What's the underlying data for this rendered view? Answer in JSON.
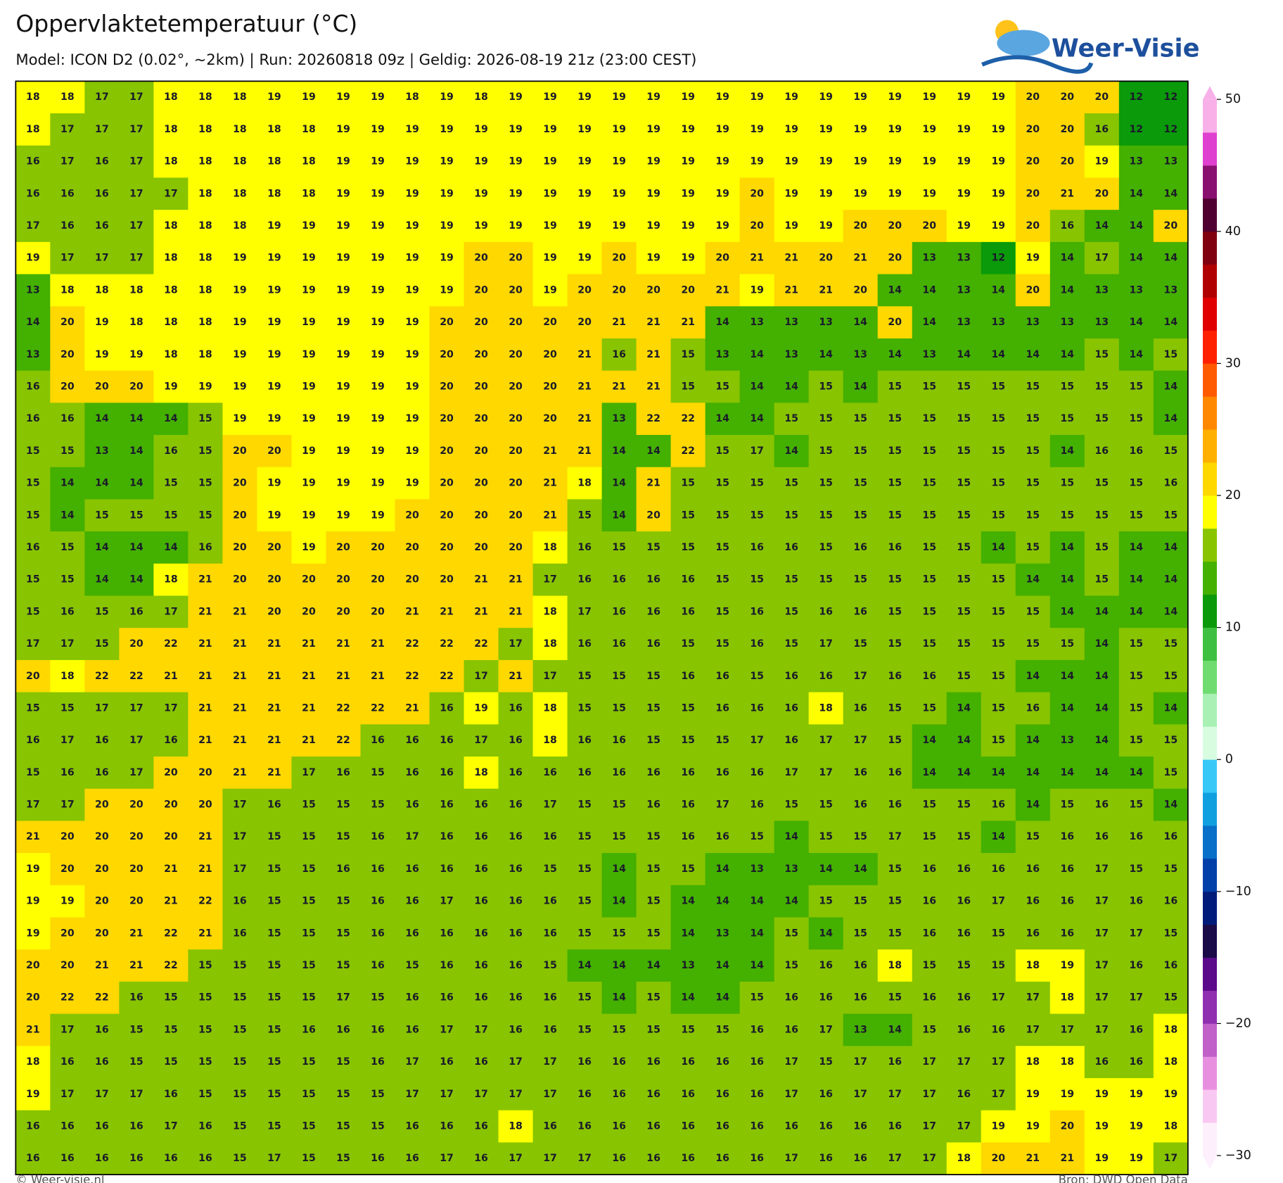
{
  "header": {
    "title": "Oppervlaktetemperatuur (°C)",
    "subtitle": "Model: ICON D2 (0.02°, ~2km)  |  Run: 20260818 09z  |  Geldig: 2026-08-19 21z (23:00 CEST)"
  },
  "logo": {
    "text": "Weer-Visie"
  },
  "footer": {
    "left": "© Weer-visie.nl",
    "right": "Bron: DWD Open Data"
  },
  "colorbar": {
    "lim": [
      -30,
      50
    ],
    "ticks": [
      50,
      40,
      30,
      20,
      10,
      0,
      {
        "value": -10,
        "label": "−10"
      },
      {
        "value": -20,
        "label": "−20"
      },
      {
        "value": -30,
        "label": "−30"
      }
    ],
    "colors": [
      "#fdf0fc",
      "#f9c8f2",
      "#e890e0",
      "#c060c8",
      "#9030b0",
      "#5a0a8a",
      "#1a0a48",
      "#001a7a",
      "#0040a8",
      "#0870c8",
      "#10a0e0",
      "#38c8f8",
      "#d8fce0",
      "#a8f0b4",
      "#70dc70",
      "#40c040",
      "#0a9a0a",
      "#44b000",
      "#88c400",
      "#ffff00",
      "#ffd800",
      "#ffb000",
      "#ff8800",
      "#ff5a00",
      "#ff2000",
      "#e00000",
      "#b00000",
      "#800010",
      "#500030",
      "#8a1070",
      "#e040d0",
      "#f8b0e8"
    ]
  },
  "map": {
    "values": [
      [
        18,
        18,
        17,
        17,
        18,
        18,
        18,
        19,
        19,
        19,
        19,
        18,
        19,
        18,
        19,
        19,
        19,
        19,
        19,
        19,
        19,
        19,
        19,
        19,
        19,
        19,
        19,
        19,
        19,
        20,
        20,
        20,
        12,
        12
      ],
      [
        18,
        17,
        17,
        17,
        18,
        18,
        18,
        18,
        18,
        19,
        19,
        19,
        19,
        19,
        19,
        19,
        19,
        19,
        19,
        19,
        19,
        19,
        19,
        19,
        19,
        19,
        19,
        19,
        19,
        20,
        20,
        16,
        12,
        12
      ],
      [
        16,
        17,
        16,
        17,
        18,
        18,
        18,
        18,
        18,
        19,
        19,
        19,
        19,
        19,
        19,
        19,
        19,
        19,
        19,
        19,
        19,
        19,
        19,
        19,
        19,
        19,
        19,
        19,
        19,
        20,
        20,
        19,
        13,
        13
      ],
      [
        16,
        16,
        16,
        17,
        17,
        18,
        18,
        18,
        18,
        19,
        19,
        19,
        19,
        19,
        19,
        19,
        19,
        19,
        19,
        19,
        19,
        20,
        19,
        19,
        19,
        19,
        19,
        19,
        19,
        20,
        21,
        20,
        14,
        14
      ],
      [
        17,
        16,
        16,
        17,
        18,
        18,
        18,
        19,
        19,
        19,
        19,
        19,
        19,
        19,
        19,
        19,
        19,
        19,
        19,
        19,
        19,
        20,
        19,
        19,
        20,
        20,
        20,
        19,
        19,
        20,
        16,
        14,
        14,
        20
      ],
      [
        19,
        17,
        17,
        17,
        18,
        18,
        19,
        19,
        19,
        19,
        19,
        19,
        19,
        20,
        20,
        19,
        19,
        20,
        19,
        19,
        20,
        21,
        21,
        20,
        21,
        20,
        13,
        13,
        12,
        19,
        14,
        17,
        14,
        14
      ],
      [
        13,
        18,
        18,
        18,
        18,
        18,
        19,
        19,
        19,
        19,
        19,
        19,
        19,
        20,
        20,
        19,
        20,
        20,
        20,
        20,
        21,
        19,
        21,
        21,
        20,
        14,
        14,
        13,
        14,
        20,
        14,
        13,
        13,
        13
      ],
      [
        14,
        20,
        19,
        18,
        18,
        18,
        19,
        19,
        19,
        19,
        19,
        19,
        20,
        20,
        20,
        20,
        20,
        21,
        21,
        21,
        14,
        13,
        13,
        13,
        14,
        20,
        14,
        13,
        13,
        13,
        13,
        13,
        14,
        14
      ],
      [
        13,
        20,
        19,
        19,
        18,
        18,
        19,
        19,
        19,
        19,
        19,
        19,
        20,
        20,
        20,
        20,
        21,
        16,
        21,
        15,
        13,
        14,
        13,
        14,
        13,
        14,
        13,
        14,
        14,
        14,
        14,
        15,
        14,
        15
      ],
      [
        16,
        20,
        20,
        20,
        19,
        19,
        19,
        19,
        19,
        19,
        19,
        19,
        20,
        20,
        20,
        20,
        21,
        21,
        21,
        15,
        15,
        14,
        14,
        15,
        14,
        15,
        15,
        15,
        15,
        15,
        15,
        15,
        15,
        14
      ],
      [
        16,
        16,
        14,
        14,
        14,
        15,
        19,
        19,
        19,
        19,
        19,
        19,
        20,
        20,
        20,
        20,
        21,
        13,
        22,
        22,
        14,
        14,
        15,
        15,
        15,
        15,
        15,
        15,
        15,
        15,
        15,
        15,
        15,
        14
      ],
      [
        15,
        15,
        13,
        14,
        16,
        15,
        20,
        20,
        19,
        19,
        19,
        19,
        20,
        20,
        20,
        21,
        21,
        14,
        14,
        22,
        15,
        17,
        14,
        15,
        15,
        15,
        15,
        15,
        15,
        15,
        14,
        16,
        16,
        15
      ],
      [
        15,
        14,
        14,
        14,
        15,
        15,
        20,
        19,
        19,
        19,
        19,
        19,
        20,
        20,
        20,
        21,
        18,
        14,
        21,
        15,
        15,
        15,
        15,
        15,
        15,
        15,
        15,
        15,
        15,
        15,
        15,
        15,
        15,
        16
      ],
      [
        15,
        14,
        15,
        15,
        15,
        15,
        20,
        19,
        19,
        19,
        19,
        20,
        20,
        20,
        20,
        21,
        15,
        14,
        20,
        15,
        15,
        15,
        15,
        15,
        15,
        15,
        15,
        15,
        15,
        15,
        15,
        15,
        15,
        15
      ],
      [
        16,
        15,
        14,
        14,
        14,
        16,
        20,
        20,
        19,
        20,
        20,
        20,
        20,
        20,
        20,
        18,
        16,
        15,
        15,
        15,
        15,
        16,
        16,
        15,
        16,
        16,
        15,
        15,
        14,
        15,
        14,
        15,
        14,
        14
      ],
      [
        15,
        15,
        14,
        14,
        18,
        21,
        20,
        20,
        20,
        20,
        20,
        20,
        20,
        21,
        21,
        17,
        16,
        16,
        16,
        16,
        15,
        15,
        15,
        15,
        15,
        15,
        15,
        15,
        15,
        14,
        14,
        15,
        14,
        14
      ],
      [
        15,
        16,
        15,
        16,
        17,
        21,
        21,
        20,
        20,
        20,
        20,
        21,
        21,
        21,
        21,
        18,
        17,
        16,
        16,
        16,
        15,
        16,
        15,
        16,
        16,
        15,
        15,
        15,
        15,
        15,
        14,
        14,
        14,
        14
      ],
      [
        17,
        17,
        15,
        20,
        22,
        21,
        21,
        21,
        21,
        21,
        21,
        22,
        22,
        22,
        17,
        18,
        16,
        16,
        16,
        15,
        15,
        16,
        15,
        17,
        15,
        15,
        15,
        15,
        15,
        15,
        15,
        14,
        15,
        15
      ],
      [
        20,
        18,
        22,
        22,
        21,
        21,
        21,
        21,
        21,
        21,
        21,
        22,
        22,
        17,
        21,
        17,
        15,
        15,
        15,
        16,
        16,
        15,
        16,
        16,
        17,
        16,
        16,
        15,
        15,
        14,
        14,
        14,
        15,
        15
      ],
      [
        15,
        15,
        17,
        17,
        17,
        21,
        21,
        21,
        21,
        22,
        22,
        21,
        16,
        19,
        16,
        18,
        15,
        15,
        15,
        15,
        16,
        16,
        16,
        18,
        16,
        15,
        15,
        14,
        15,
        16,
        14,
        14,
        15,
        14
      ],
      [
        16,
        17,
        16,
        17,
        16,
        21,
        21,
        21,
        21,
        22,
        16,
        16,
        16,
        17,
        16,
        18,
        16,
        16,
        15,
        15,
        15,
        17,
        16,
        17,
        17,
        15,
        14,
        14,
        15,
        14,
        13,
        14,
        15,
        15
      ],
      [
        15,
        16,
        16,
        17,
        20,
        20,
        21,
        21,
        17,
        16,
        15,
        16,
        16,
        18,
        16,
        16,
        16,
        16,
        16,
        16,
        16,
        16,
        17,
        17,
        16,
        16,
        14,
        14,
        14,
        14,
        14,
        14,
        14,
        15
      ],
      [
        17,
        17,
        20,
        20,
        20,
        20,
        17,
        16,
        15,
        15,
        15,
        16,
        16,
        16,
        16,
        17,
        15,
        15,
        16,
        16,
        17,
        16,
        15,
        15,
        16,
        16,
        15,
        15,
        16,
        14,
        15,
        16,
        15,
        14
      ],
      [
        21,
        20,
        20,
        20,
        20,
        21,
        17,
        15,
        15,
        15,
        16,
        17,
        16,
        16,
        16,
        16,
        15,
        15,
        15,
        16,
        16,
        15,
        14,
        15,
        15,
        17,
        15,
        15,
        14,
        15,
        16,
        16,
        16,
        16
      ],
      [
        19,
        20,
        20,
        20,
        21,
        21,
        17,
        15,
        15,
        16,
        16,
        16,
        16,
        16,
        16,
        15,
        15,
        14,
        15,
        15,
        14,
        13,
        13,
        14,
        14,
        15,
        16,
        16,
        16,
        16,
        16,
        17,
        15,
        15
      ],
      [
        19,
        19,
        20,
        20,
        21,
        22,
        16,
        15,
        15,
        15,
        16,
        16,
        17,
        16,
        16,
        16,
        15,
        14,
        15,
        14,
        14,
        14,
        14,
        15,
        15,
        15,
        16,
        16,
        17,
        16,
        16,
        17,
        16,
        16
      ],
      [
        19,
        20,
        20,
        21,
        22,
        21,
        16,
        15,
        15,
        15,
        16,
        16,
        16,
        16,
        16,
        16,
        15,
        15,
        15,
        14,
        13,
        14,
        15,
        14,
        15,
        15,
        16,
        16,
        15,
        16,
        16,
        17,
        17,
        15
      ],
      [
        20,
        20,
        21,
        21,
        22,
        15,
        15,
        15,
        15,
        15,
        16,
        15,
        16,
        16,
        16,
        15,
        14,
        14,
        14,
        13,
        14,
        14,
        15,
        16,
        16,
        18,
        15,
        15,
        15,
        18,
        19,
        17,
        16,
        16
      ],
      [
        20,
        22,
        22,
        16,
        15,
        15,
        15,
        15,
        15,
        17,
        15,
        16,
        16,
        16,
        16,
        16,
        15,
        14,
        15,
        14,
        14,
        15,
        16,
        16,
        16,
        15,
        16,
        16,
        17,
        17,
        18,
        17,
        17,
        15
      ],
      [
        21,
        17,
        16,
        15,
        15,
        15,
        15,
        15,
        16,
        16,
        16,
        16,
        17,
        17,
        16,
        16,
        15,
        15,
        15,
        15,
        15,
        16,
        16,
        17,
        13,
        14,
        15,
        16,
        16,
        17,
        17,
        17,
        16,
        18
      ],
      [
        18,
        16,
        16,
        15,
        15,
        15,
        15,
        15,
        15,
        15,
        16,
        17,
        16,
        16,
        17,
        17,
        16,
        16,
        16,
        16,
        16,
        16,
        17,
        15,
        17,
        16,
        17,
        17,
        17,
        18,
        18,
        16,
        16,
        18
      ],
      [
        19,
        17,
        17,
        17,
        16,
        15,
        15,
        15,
        15,
        15,
        15,
        17,
        17,
        17,
        17,
        17,
        16,
        16,
        16,
        16,
        16,
        16,
        17,
        16,
        17,
        17,
        17,
        16,
        17,
        19,
        19,
        19,
        19,
        19
      ],
      [
        16,
        16,
        16,
        16,
        17,
        16,
        15,
        15,
        15,
        15,
        15,
        16,
        16,
        16,
        18,
        16,
        16,
        16,
        16,
        16,
        16,
        16,
        16,
        16,
        16,
        16,
        17,
        17,
        19,
        19,
        20,
        19,
        19,
        18
      ],
      [
        16,
        16,
        16,
        16,
        16,
        16,
        15,
        17,
        15,
        15,
        16,
        16,
        17,
        16,
        17,
        17,
        17,
        16,
        16,
        16,
        16,
        16,
        17,
        16,
        16,
        17,
        17,
        18,
        20,
        21,
        21,
        19,
        19,
        17
      ]
    ]
  }
}
